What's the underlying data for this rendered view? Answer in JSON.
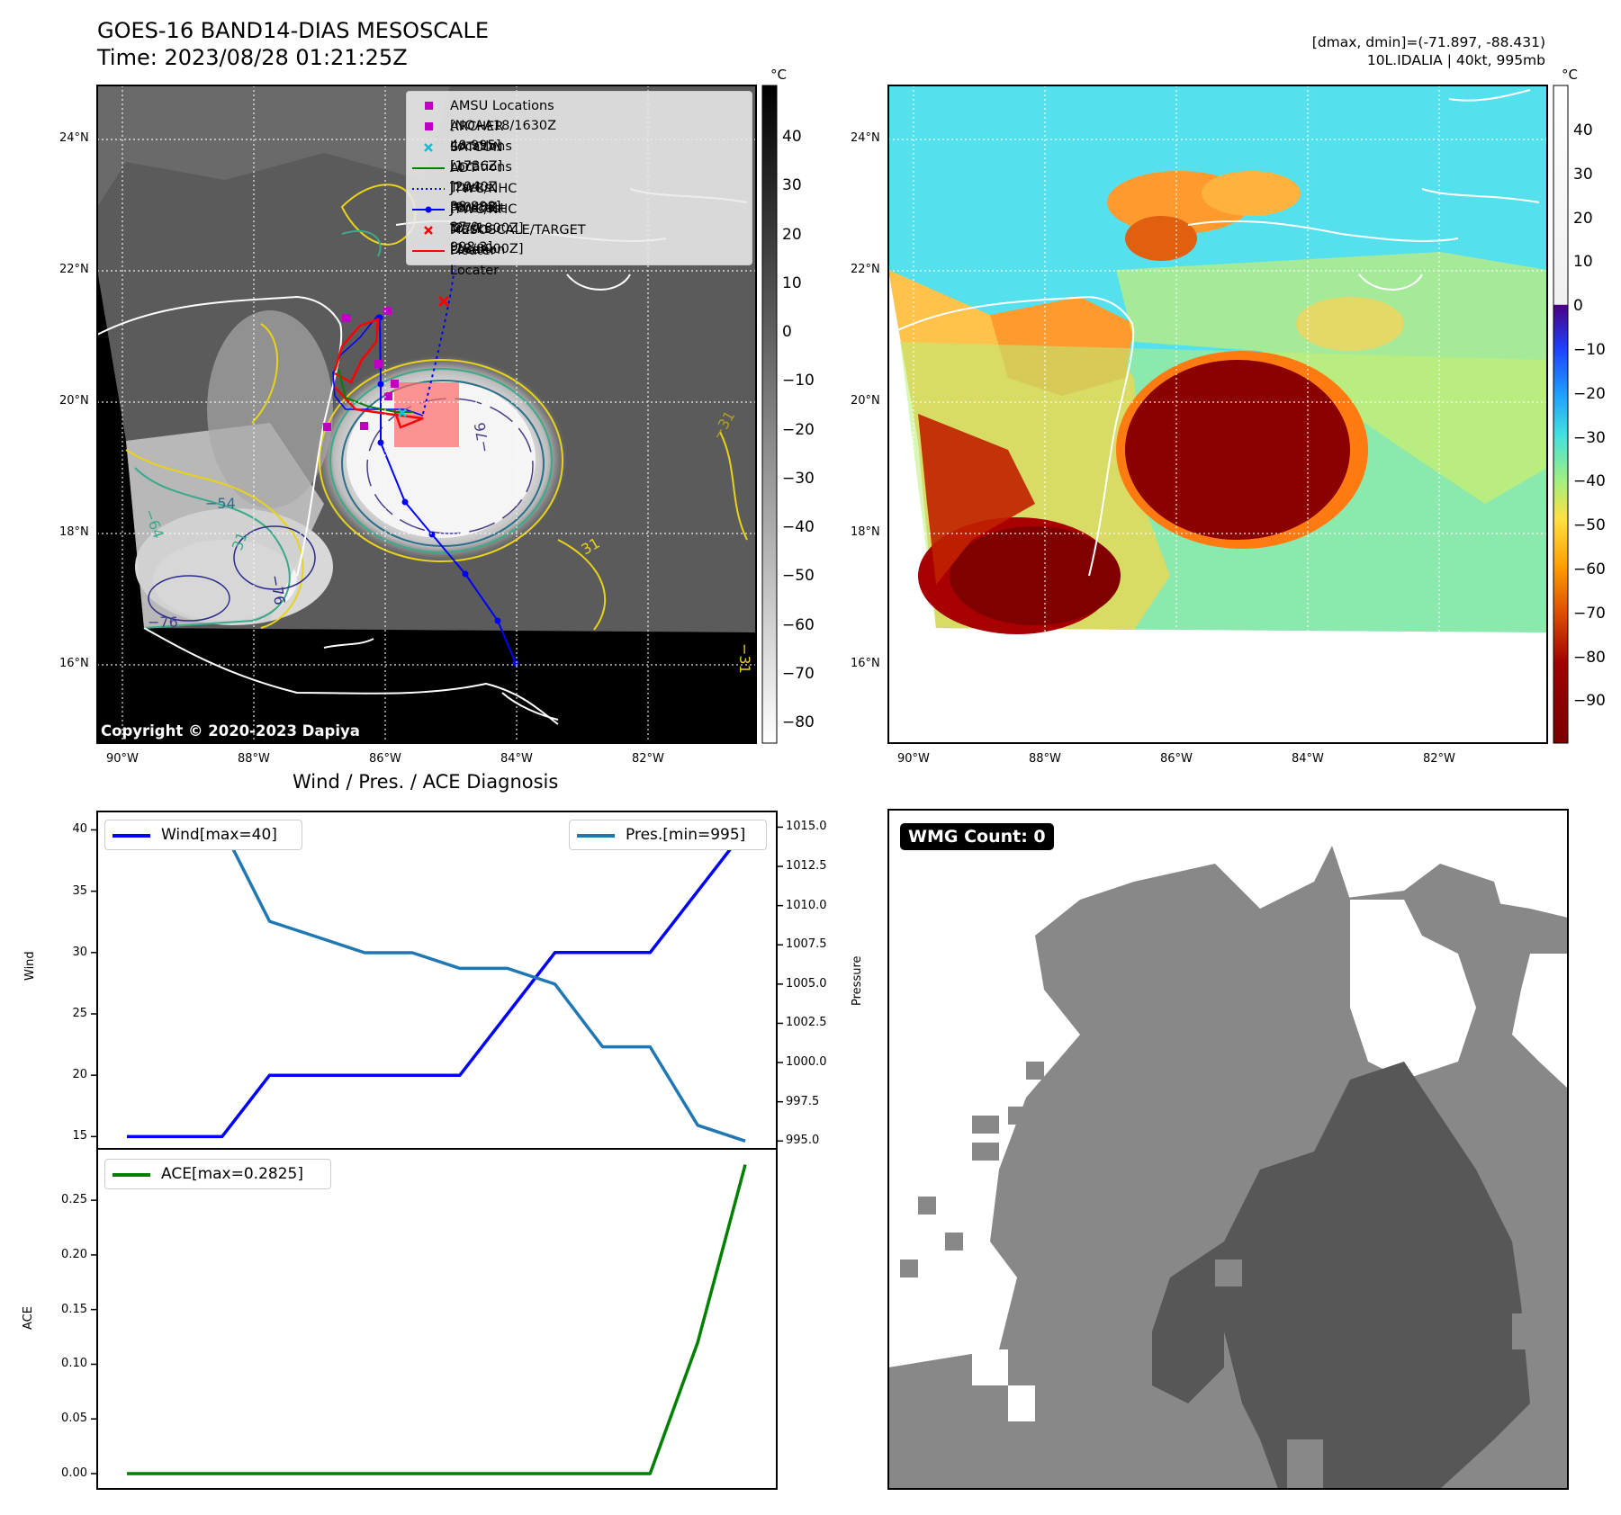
{
  "header": {
    "title_line1": "GOES-16 BAND14-DIAS MESOSCALE",
    "title_line2": "Time: 2023/08/28 01:21:25Z",
    "info_line1": "[dmax, dmin]=(-71.897, -88.431)",
    "info_line2": "10L.IDALIA | 40kt, 995mb"
  },
  "map_panels": {
    "lon_ticks": [
      "90°W",
      "88°W",
      "86°W",
      "84°W",
      "82°W"
    ],
    "lat_ticks": [
      "24°N",
      "22°N",
      "20°N",
      "18°N",
      "16°N"
    ],
    "colorbar_unit": "°C",
    "gray_colorbar_ticks": [
      "40",
      "30",
      "20",
      "10",
      "0",
      "−10",
      "−20",
      "−30",
      "−40",
      "−50",
      "−60",
      "−70",
      "−80"
    ],
    "color_colorbar_ticks": [
      "40",
      "30",
      "20",
      "10",
      "0",
      "−10",
      "−20",
      "−30",
      "−40",
      "−50",
      "−60",
      "−70",
      "−80",
      "−90"
    ],
    "copyright": "Copyright © 2020-2023 Dapiya",
    "contour_labels": [
      "−54",
      "−64",
      "−76",
      "−31",
      "−76",
      "31",
      "31",
      "−76",
      "−31"
    ],
    "legend": [
      {
        "label": "AMSU Locations [NOAA18/1630Z 40 995]",
        "marker": "square",
        "color": "#c000c0"
      },
      {
        "label": "ARCHER Locations [1736Z]",
        "marker": "square",
        "color": "#c000c0"
      },
      {
        "label": "SATCON Locations [2040Z 38 998]",
        "marker": "x",
        "color": "#17becf"
      },
      {
        "label": "ADT Tracks [0040Z 37.0 998.3]",
        "marker": "line",
        "color": "#008000"
      },
      {
        "label": "JTWC/NHC Forecast [27/1800Z]",
        "marker": "dotted",
        "color": "#0000ff"
      },
      {
        "label": "JTWC/NHC Tracks [28/0000Z]",
        "marker": "line-dot",
        "color": "#0000ff"
      },
      {
        "label": "MESOSCALE/TARGET Location",
        "marker": "x",
        "color": "#ff0000"
      },
      {
        "label": "Floater Locater",
        "marker": "line",
        "color": "#ff0000"
      }
    ],
    "wmg_label": "WMG Count: 0"
  },
  "chart_data": [
    {
      "type": "line",
      "title": "Wind / Pres. / ACE Diagnosis",
      "ylabel": "Wind",
      "ylim": [
        14,
        41.5
      ],
      "yticks": [
        "40",
        "35",
        "30",
        "25",
        "20",
        "15"
      ],
      "series": [
        {
          "name": "Wind[max=40]",
          "color": "#0000ff",
          "x": [
            0,
            1,
            2,
            3,
            4,
            5,
            6,
            7,
            8,
            9,
            10,
            11,
            12,
            13
          ],
          "values": [
            15,
            15,
            15,
            20,
            20,
            20,
            20,
            20,
            25,
            30,
            30,
            30,
            35,
            40
          ]
        }
      ]
    },
    {
      "type": "line",
      "ylabel": "Pressure",
      "ylim": [
        994.5,
        1016
      ],
      "yticks": [
        "1015.0",
        "1012.5",
        "1010.0",
        "1007.5",
        "1005.0",
        "1002.5",
        "1000.0",
        "997.5",
        "995.0"
      ],
      "series": [
        {
          "name": "Pres.[min=995]",
          "color": "#1f77b4",
          "x": [
            0,
            1,
            2,
            3,
            4,
            5,
            6,
            7,
            8,
            9,
            10,
            11,
            12,
            13
          ],
          "values": [
            1015,
            1015,
            1015,
            1009,
            1008,
            1007,
            1007,
            1006,
            1006,
            1005,
            1001,
            1001,
            996,
            995
          ]
        }
      ]
    },
    {
      "type": "line",
      "ylabel": "ACE",
      "ylim": [
        -0.014,
        0.297
      ],
      "yticks": [
        "0.25",
        "0.20",
        "0.15",
        "0.10",
        "0.05",
        "0.00"
      ],
      "series": [
        {
          "name": "ACE[max=0.2825]",
          "color": "#008000",
          "x": [
            0,
            1,
            2,
            3,
            4,
            5,
            6,
            7,
            8,
            9,
            10,
            11,
            12,
            13
          ],
          "values": [
            0,
            0,
            0,
            0,
            0,
            0,
            0,
            0,
            0,
            0,
            0,
            0,
            0.12,
            0.2825
          ]
        }
      ]
    }
  ]
}
